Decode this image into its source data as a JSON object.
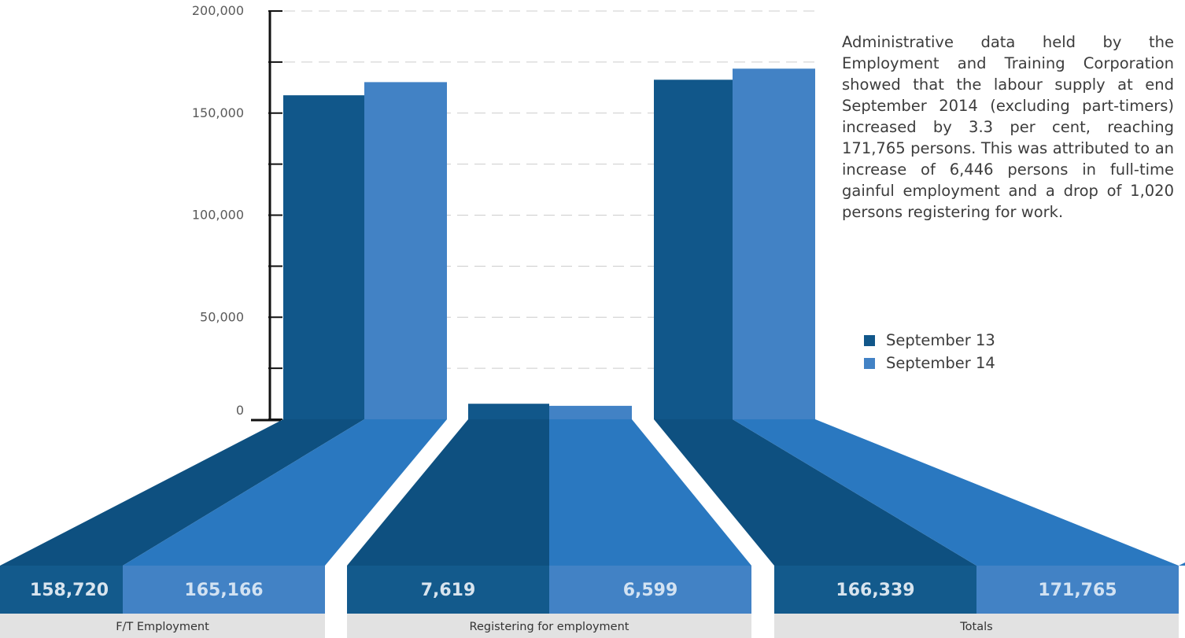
{
  "colors": {
    "sep13": "#11578a",
    "sep14": "#4282c5",
    "sep13_band": "#0e5080",
    "sep14_band": "#2a78c0",
    "sep13_box": "#135a8c",
    "sep14_box": "#4282c5",
    "sep14_text": "#d2e2f2",
    "sep13_text": "#d8e4ee",
    "category_bg": "#e2e2e2",
    "grid": "#cccccc",
    "axis": "#111111"
  },
  "description": "Administrative data held by the Employment and Training Corporation showed that the labour supply at end September 2014 (excluding part-timers) increased by 3.3 per cent, reaching 171,765 persons. This was attributed to an increase of 6,446 persons in full-time gainful employment and a drop of 1,020 persons registering for work.",
  "chart_data": {
    "type": "bar",
    "title": "",
    "xlabel": "",
    "ylabel": "",
    "ylim": [
      0,
      200000
    ],
    "y_ticks": [
      0,
      50000,
      100000,
      150000,
      200000
    ],
    "y_tick_labels": [
      "0",
      "50,000",
      "100,000",
      "150,000",
      "200,000"
    ],
    "categories": [
      "F/T Employment",
      "Registering for employment",
      "Totals"
    ],
    "series": [
      {
        "name": "September 13",
        "values": [
          158720,
          7619,
          166339
        ],
        "labels": [
          "158,720",
          "7,619",
          "166,339"
        ]
      },
      {
        "name": "September 14",
        "values": [
          165166,
          6599,
          171765
        ],
        "labels": [
          "165,166",
          "6,599",
          "171,765"
        ]
      }
    ],
    "legend": "right",
    "grid": true
  }
}
